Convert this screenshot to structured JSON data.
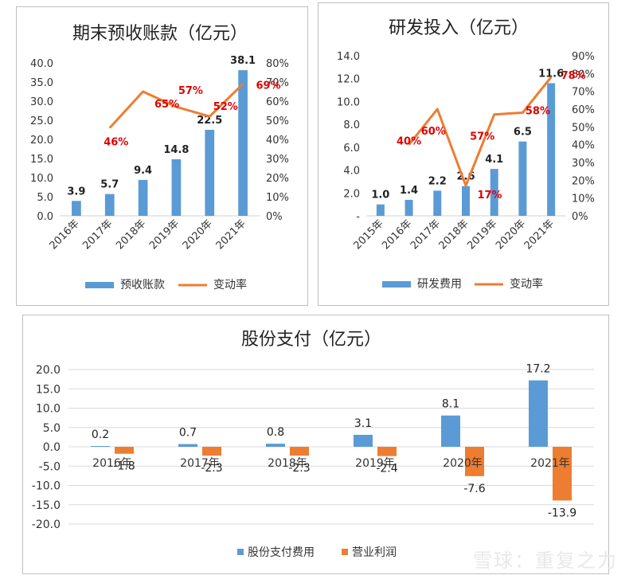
{
  "watermark": "雪球：重复之力",
  "chart_data": [
    {
      "type": "bar",
      "title": "期末预收账款（亿元）",
      "categories": [
        "2016年",
        "2017年",
        "2018年",
        "2019年",
        "2020年",
        "2021年"
      ],
      "series": [
        {
          "name": "预收账款",
          "type": "bar",
          "axis": "left",
          "values": [
            3.9,
            5.7,
            9.4,
            14.8,
            22.5,
            38.1
          ],
          "color": "#5b9bd5"
        },
        {
          "name": "变动率",
          "type": "line",
          "axis": "right",
          "values": [
            null,
            46,
            65,
            57,
            52,
            69
          ],
          "color": "#ed7d31"
        }
      ],
      "bar_labels": [
        "3.9",
        "5.7",
        "9.4",
        "14.8",
        "22.5",
        "38.1"
      ],
      "line_labels": [
        "",
        "46%",
        "65%",
        "57%",
        "52%",
        "69%"
      ],
      "y_left": {
        "min": 0,
        "max": 40,
        "ticks": [
          "0.0",
          "5.0",
          "10.0",
          "15.0",
          "20.0",
          "25.0",
          "30.0",
          "35.0",
          "40.0"
        ]
      },
      "y_right": {
        "min": 0,
        "max": 80,
        "ticks": [
          "0%",
          "10%",
          "20%",
          "30%",
          "40%",
          "50%",
          "60%",
          "70%",
          "80%"
        ]
      },
      "legend_position": "bottom",
      "label_color": "#e00000"
    },
    {
      "type": "bar",
      "title": "研发投入（亿元）",
      "categories": [
        "2015年",
        "2016年",
        "2017年",
        "2018年",
        "2019年",
        "2020年",
        "2021年"
      ],
      "series": [
        {
          "name": "研发费用",
          "type": "bar",
          "axis": "left",
          "values": [
            1.0,
            1.4,
            2.2,
            2.6,
            4.1,
            6.5,
            11.6
          ],
          "color": "#5b9bd5"
        },
        {
          "name": "变动率",
          "type": "line",
          "axis": "right",
          "values": [
            null,
            40,
            60,
            17,
            57,
            58,
            78
          ],
          "color": "#ed7d31"
        }
      ],
      "bar_labels": [
        "1.0",
        "1.4",
        "2.2",
        "2.6",
        "4.1",
        "6.5",
        "11.6"
      ],
      "line_labels": [
        "",
        "40%",
        "60%",
        "17%",
        "57%",
        "58%",
        "78%"
      ],
      "y_left": {
        "min": 0,
        "max": 14,
        "ticks": [
          "-",
          "2.0",
          "4.0",
          "6.0",
          "8.0",
          "10.0",
          "12.0",
          "14.0"
        ]
      },
      "y_right": {
        "min": 0,
        "max": 90,
        "ticks": [
          "0%",
          "10%",
          "20%",
          "30%",
          "40%",
          "50%",
          "60%",
          "70%",
          "80%",
          "90%"
        ]
      },
      "legend_position": "bottom",
      "label_color": "#e00000"
    },
    {
      "type": "bar",
      "title": "股份支付（亿元）",
      "categories": [
        "2016年",
        "2017年",
        "2018年",
        "2019年",
        "2020年",
        "2021年"
      ],
      "series": [
        {
          "name": "股份支付费用",
          "values": [
            0.2,
            0.7,
            0.8,
            3.1,
            8.1,
            17.2
          ],
          "color": "#5b9bd5"
        },
        {
          "name": "营业利润",
          "values": [
            -1.8,
            -2.3,
            -2.3,
            -2.4,
            -7.6,
            -13.9
          ],
          "color": "#ed7d31"
        }
      ],
      "labels": [
        [
          "0.2",
          "0.7",
          "0.8",
          "3.1",
          "8.1",
          "17.2"
        ],
        [
          "-1.8",
          "-2.3",
          "-2.3",
          "-2.4",
          "-7.6",
          "-13.9"
        ]
      ],
      "y": {
        "min": -20,
        "max": 20,
        "ticks": [
          "-20.0",
          "-15.0",
          "-10.0",
          "-5.0",
          "0.0",
          "5.0",
          "10.0",
          "15.0",
          "20.0"
        ]
      },
      "grid": true,
      "legend_position": "bottom"
    }
  ]
}
